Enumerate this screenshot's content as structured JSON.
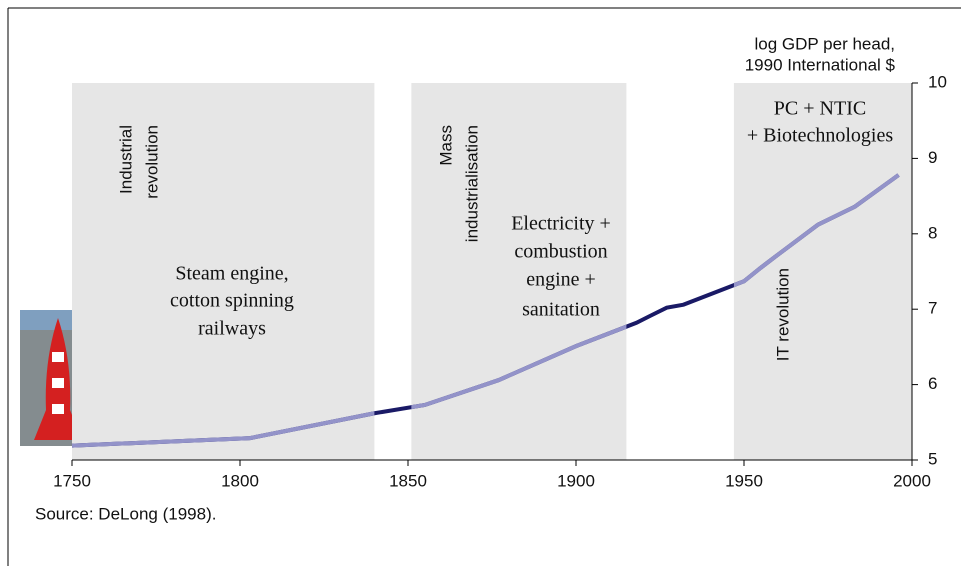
{
  "chart_data": {
    "type": "line",
    "y_label": [
      "log GDP per head,",
      "1990 International $"
    ],
    "source": "Source: DeLong (1998).",
    "x": [
      1750,
      1803,
      1840,
      1855,
      1877,
      1900,
      1918,
      1922,
      1927,
      1932,
      1950,
      1955,
      1960,
      1972,
      1983,
      1996
    ],
    "series": [
      {
        "color": "#9393c9",
        "highlight_color": "#1a1a66",
        "values": [
          5.19,
          5.29,
          5.62,
          5.73,
          6.06,
          6.51,
          6.82,
          6.91,
          7.02,
          7.06,
          7.37,
          7.55,
          7.72,
          8.12,
          8.36,
          8.78
        ]
      }
    ],
    "periods": [
      {
        "start": 1750,
        "end": 1840,
        "label": [
          "Industrial",
          "revolution"
        ],
        "note": [
          "Steam engine,",
          "cotton spinning",
          "railways"
        ]
      },
      {
        "start": 1851,
        "end": 1915,
        "label": [
          "Mass",
          "industrialisation"
        ],
        "note": [
          "Electricity +",
          "combustion",
          "engine +",
          "sanitation"
        ]
      },
      {
        "start": 1947,
        "end": 2000,
        "label": [
          "IT revolution"
        ],
        "note": [
          "PC + NTIC",
          "+ Biotechnologies"
        ]
      }
    ],
    "period_color": "#e6e6e6",
    "xlim": [
      1750,
      2000
    ],
    "xticks": [
      1750,
      1800,
      1850,
      1900,
      1950,
      2000
    ],
    "ylim": [
      5,
      10
    ],
    "yticks": [
      5,
      6,
      7,
      8,
      9,
      10
    ]
  }
}
